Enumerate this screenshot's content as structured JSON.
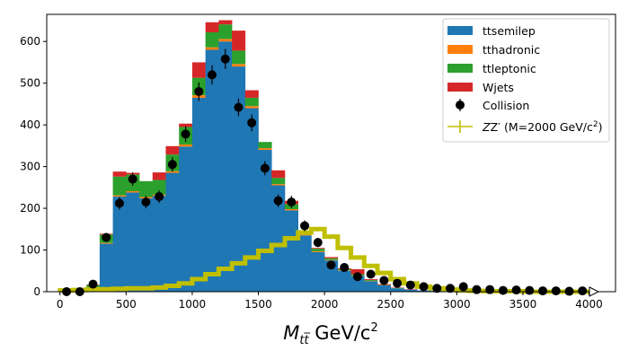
{
  "chart_data": {
    "type": "bar",
    "stacked": true,
    "xlabel": "M_{t̅t} GeV/c^2",
    "xlabel_parts": {
      "main": "M",
      "sub": "tt̅",
      "unit": " GeV/c",
      "sup": "2"
    },
    "xlim": [
      -100,
      4200
    ],
    "ylim": [
      0,
      665
    ],
    "xticks": [
      "0",
      "500",
      "1000",
      "1500",
      "2000",
      "2500",
      "3000",
      "3500",
      "4000"
    ],
    "yticks": [
      "0",
      "100",
      "200",
      "300",
      "400",
      "500",
      "600"
    ],
    "bin_width": 100,
    "bin_starts": [
      0,
      100,
      200,
      300,
      400,
      500,
      600,
      700,
      800,
      900,
      1000,
      1100,
      1200,
      1300,
      1400,
      1500,
      1600,
      1700,
      1800,
      1900,
      2000,
      2100,
      2200,
      2300,
      2400,
      2500,
      2600,
      2700,
      2800,
      2900,
      3000,
      3100,
      3200,
      3300,
      3400,
      3500,
      3600,
      3700,
      3800,
      3900
    ],
    "legend_position": "top-right",
    "grid": false,
    "series": [
      {
        "name": "ttsemilep",
        "color": "#1f77b4",
        "values": [
          0,
          0,
          10,
          115,
          228,
          238,
          224,
          230,
          285,
          348,
          465,
          580,
          600,
          540,
          440,
          340,
          255,
          195,
          135,
          95,
          75,
          50,
          38,
          25,
          15,
          8,
          5,
          3,
          2,
          1,
          1,
          0,
          0,
          0,
          0,
          0,
          0,
          0,
          0,
          0
        ]
      },
      {
        "name": "tthadronic",
        "color": "#ff7f0e",
        "values": [
          0,
          0,
          1,
          2,
          3,
          3,
          3,
          3,
          4,
          5,
          6,
          6,
          6,
          6,
          5,
          4,
          3,
          3,
          2,
          2,
          1,
          1,
          1,
          1,
          0,
          0,
          0,
          0,
          0,
          0,
          0,
          0,
          0,
          0,
          0,
          0,
          0,
          0,
          0,
          0
        ]
      },
      {
        "name": "ttleptonic",
        "color": "#2ca02c",
        "values": [
          0,
          0,
          5,
          20,
          45,
          40,
          38,
          35,
          40,
          42,
          42,
          36,
          35,
          32,
          20,
          15,
          15,
          12,
          8,
          6,
          4,
          3,
          3,
          2,
          1,
          1,
          0,
          0,
          0,
          0,
          0,
          0,
          0,
          0,
          0,
          0,
          0,
          0,
          0,
          0
        ]
      },
      {
        "name": "Wjets",
        "color": "#d62728",
        "values": [
          0,
          0,
          1,
          2,
          12,
          4,
          0,
          18,
          20,
          8,
          37,
          24,
          10,
          48,
          18,
          0,
          18,
          8,
          0,
          2,
          3,
          2,
          12,
          2,
          2,
          1,
          1,
          0,
          0,
          0,
          0,
          0,
          0,
          0,
          0,
          0,
          0,
          0,
          0,
          0
        ]
      }
    ],
    "collision": {
      "name": "Collision",
      "color": "#000000",
      "values": [
        0,
        0,
        18,
        130,
        212,
        270,
        215,
        228,
        305,
        378,
        480,
        520,
        558,
        442,
        405,
        296,
        218,
        215,
        158,
        118,
        64,
        58,
        36,
        42,
        27,
        20,
        16,
        12,
        8,
        8,
        12,
        5,
        5,
        3,
        4,
        3,
        2,
        2,
        1,
        2
      ],
      "errors": [
        0,
        0,
        4,
        11,
        15,
        16,
        15,
        15,
        17,
        19,
        22,
        23,
        24,
        21,
        20,
        17,
        15,
        15,
        13,
        11,
        8,
        8,
        6,
        6,
        5,
        4,
        4,
        3,
        3,
        3,
        3,
        2,
        2,
        2,
        2,
        2,
        1,
        1,
        1,
        1
      ]
    },
    "signal": {
      "name": "Z′ (M=2000 GeV/c²)",
      "legend_main": "Z′ (M=2000 GeV/c",
      "legend_sup": "2",
      "legend_end": ")",
      "color": "#bfbf00",
      "values": [
        3,
        4,
        5,
        6,
        7,
        8,
        8,
        10,
        14,
        20,
        30,
        42,
        55,
        68,
        82,
        98,
        112,
        128,
        142,
        150,
        132,
        105,
        82,
        62,
        45,
        30,
        20,
        12,
        8,
        5,
        3,
        2,
        1,
        1,
        1,
        0,
        0,
        0,
        0,
        0
      ]
    }
  }
}
